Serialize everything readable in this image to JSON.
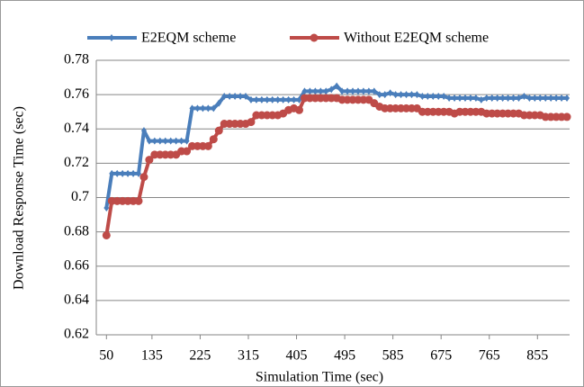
{
  "chart_data": {
    "type": "line",
    "xlabel": "Simulation Time (sec)",
    "ylabel": "Download Response Time (sec)",
    "x": [
      50,
      60,
      70,
      80,
      90,
      100,
      110,
      120,
      130,
      140,
      150,
      160,
      170,
      180,
      190,
      200,
      210,
      220,
      230,
      240,
      250,
      260,
      270,
      280,
      290,
      300,
      310,
      320,
      330,
      340,
      350,
      360,
      370,
      380,
      390,
      400,
      410,
      420,
      430,
      440,
      450,
      460,
      470,
      480,
      490,
      500,
      510,
      520,
      530,
      540,
      550,
      560,
      570,
      580,
      590,
      600,
      610,
      620,
      630,
      640,
      650,
      660,
      670,
      680,
      690,
      700,
      710,
      720,
      730,
      740,
      750,
      760,
      770,
      780,
      790,
      800,
      810,
      820,
      830,
      840,
      850,
      860,
      870,
      880,
      890,
      900,
      910
    ],
    "series": [
      {
        "name": "E2EQM scheme",
        "color": "#4a7ebb",
        "marker": "diamond",
        "values": [
          0.694,
          0.714,
          0.714,
          0.714,
          0.714,
          0.714,
          0.714,
          0.739,
          0.733,
          0.733,
          0.733,
          0.733,
          0.733,
          0.733,
          0.733,
          0.733,
          0.752,
          0.752,
          0.752,
          0.752,
          0.752,
          0.755,
          0.759,
          0.759,
          0.759,
          0.759,
          0.759,
          0.757,
          0.757,
          0.757,
          0.757,
          0.757,
          0.757,
          0.757,
          0.757,
          0.757,
          0.757,
          0.762,
          0.762,
          0.762,
          0.762,
          0.762,
          0.763,
          0.765,
          0.762,
          0.762,
          0.762,
          0.762,
          0.762,
          0.762,
          0.762,
          0.76,
          0.76,
          0.761,
          0.76,
          0.76,
          0.76,
          0.76,
          0.76,
          0.759,
          0.759,
          0.759,
          0.759,
          0.759,
          0.758,
          0.758,
          0.758,
          0.758,
          0.758,
          0.758,
          0.757,
          0.758,
          0.758,
          0.758,
          0.758,
          0.758,
          0.758,
          0.758,
          0.759,
          0.758,
          0.758,
          0.758,
          0.758,
          0.758,
          0.758,
          0.758,
          0.758
        ]
      },
      {
        "name": "Without E2EQM scheme",
        "color": "#be4b48",
        "marker": "circle",
        "values": [
          0.678,
          0.698,
          0.698,
          0.698,
          0.698,
          0.698,
          0.698,
          0.712,
          0.722,
          0.725,
          0.725,
          0.725,
          0.725,
          0.725,
          0.727,
          0.727,
          0.73,
          0.73,
          0.73,
          0.73,
          0.734,
          0.739,
          0.743,
          0.743,
          0.743,
          0.743,
          0.743,
          0.744,
          0.748,
          0.748,
          0.748,
          0.748,
          0.748,
          0.749,
          0.751,
          0.752,
          0.751,
          0.758,
          0.758,
          0.758,
          0.758,
          0.758,
          0.758,
          0.758,
          0.757,
          0.757,
          0.757,
          0.757,
          0.757,
          0.757,
          0.755,
          0.753,
          0.752,
          0.752,
          0.752,
          0.752,
          0.752,
          0.752,
          0.752,
          0.75,
          0.75,
          0.75,
          0.75,
          0.75,
          0.75,
          0.749,
          0.75,
          0.75,
          0.75,
          0.75,
          0.75,
          0.749,
          0.749,
          0.749,
          0.749,
          0.749,
          0.749,
          0.749,
          0.748,
          0.748,
          0.748,
          0.748,
          0.747,
          0.747,
          0.747,
          0.747,
          0.747
        ]
      }
    ],
    "xlim": [
      31,
      915
    ],
    "xticks": [
      50,
      135,
      225,
      315,
      405,
      495,
      585,
      675,
      765,
      855
    ],
    "ylim": [
      0.62,
      0.78
    ],
    "yticks": [
      0.62,
      0.64,
      0.66,
      0.68,
      0.7,
      0.72,
      0.74,
      0.76,
      0.78
    ],
    "grid": true,
    "legend": "top"
  }
}
